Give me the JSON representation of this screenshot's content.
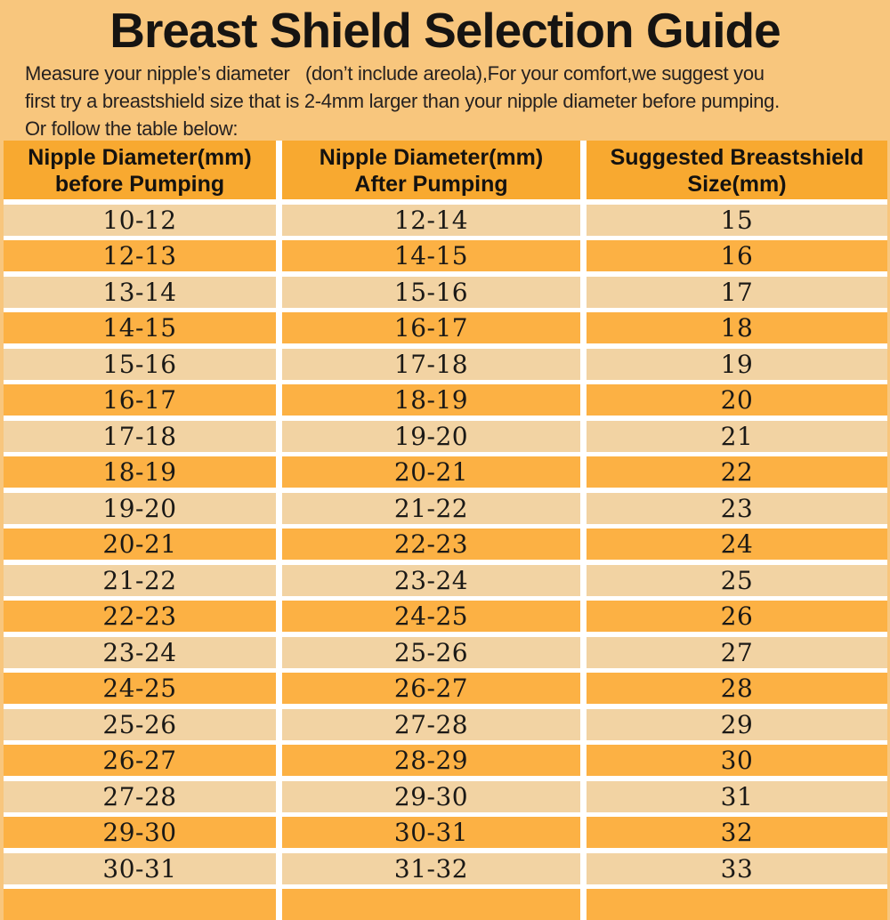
{
  "page": {
    "title": "Breast Shield Selection Guide",
    "intro_line1": "Measure your nipple’s diameter   (don’t include areola),For your comfort,we suggest you",
    "intro_line2": "first try a breastshield size that is 2-4mm larger than your nipple diameter before pumping.",
    "intro_line3": "Or follow the table below:"
  },
  "colors": {
    "bg": "#F8C67D",
    "header_orange": "#F8A930",
    "row_orange": "#FCB144",
    "row_light": "#F2D3A3",
    "divider": "#FFFFFF",
    "text": "#231F20"
  },
  "chart_data": {
    "type": "table",
    "title": "Breast Shield Selection Guide",
    "columns": [
      "Nipple Diameter(mm) before Pumping",
      "Nipple Diameter(mm) After Pumping",
      "Suggested Breastshield Size(mm)"
    ],
    "rows": [
      [
        "10-12",
        "12-14",
        "15"
      ],
      [
        "12-13",
        "14-15",
        "16"
      ],
      [
        "13-14",
        "15-16",
        "17"
      ],
      [
        "14-15",
        "16-17",
        "18"
      ],
      [
        "15-16",
        "17-18",
        "19"
      ],
      [
        "16-17",
        "18-19",
        "20"
      ],
      [
        "17-18",
        "19-20",
        "21"
      ],
      [
        "18-19",
        "20-21",
        "22"
      ],
      [
        "19-20",
        "21-22",
        "23"
      ],
      [
        "20-21",
        "22-23",
        "24"
      ],
      [
        "21-22",
        "23-24",
        "25"
      ],
      [
        "22-23",
        "24-25",
        "26"
      ],
      [
        "23-24",
        "25-26",
        "27"
      ],
      [
        "24-25",
        "26-27",
        "28"
      ],
      [
        "25-26",
        "27-28",
        "29"
      ],
      [
        "26-27",
        "28-29",
        "30"
      ],
      [
        "27-28",
        "29-30",
        "31"
      ],
      [
        "29-30",
        "30-31",
        "32"
      ],
      [
        "30-31",
        "31-32",
        "33"
      ]
    ]
  },
  "table": {
    "headers": [
      {
        "line1": "Nipple Diameter(mm)",
        "line2": "before Pumping"
      },
      {
        "line1": "Nipple Diameter(mm)",
        "line2": "After Pumping"
      },
      {
        "line1": "Suggested Breastshield",
        "line2": "Size(mm)"
      }
    ]
  }
}
